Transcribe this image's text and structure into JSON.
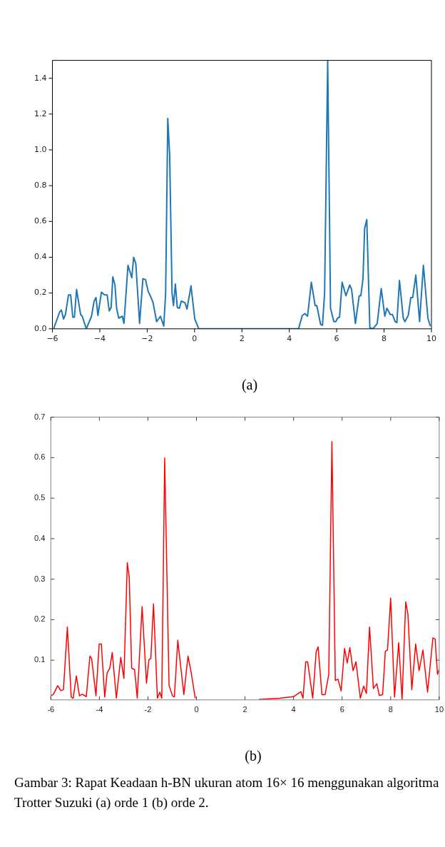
{
  "chart_data": [
    {
      "type": "line",
      "series": [
        {
          "color": "#1f77b4",
          "x": [
            -5.95,
            -5.69,
            -5.62,
            -5.53,
            -5.45,
            -5.32,
            -5.23,
            -5.14,
            -5.07,
            -4.98,
            -4.81,
            -4.74,
            -4.57,
            -4.35,
            -4.24,
            -4.16,
            -4.08,
            -3.93,
            -3.8,
            -3.69,
            -3.6,
            -3.52,
            -3.45,
            -3.36,
            -3.29,
            -3.2,
            -3.05,
            -2.98,
            -2.81,
            -2.65,
            -2.57,
            -2.48,
            -2.32,
            -2.18,
            -2.07,
            -1.96,
            -1.82,
            -1.75,
            -1.6,
            -1.44,
            -1.3,
            -1.22,
            -1.13,
            -1.05,
            -0.95,
            -0.89,
            -0.81,
            -0.73,
            -0.64,
            -0.56,
            -0.4,
            -0.32,
            -0.15,
            0.01,
            0.18,
            4.39,
            4.55,
            4.66,
            4.77,
            4.93,
            5.09,
            5.16,
            5.32,
            5.4,
            5.49,
            5.62,
            5.74,
            5.88,
            5.96,
            6.04,
            6.12,
            6.23,
            6.39,
            6.55,
            6.63,
            6.79,
            6.95,
            7.02,
            7.11,
            7.18,
            7.27,
            7.4,
            7.53,
            7.71,
            7.88,
            8.03,
            8.12,
            8.26,
            8.35,
            8.47,
            8.54,
            8.65,
            8.81,
            8.88,
            9.02,
            9.13,
            9.21,
            9.34,
            9.5,
            9.66,
            9.85,
            9.95
          ],
          "values": [
            0,
            0.095,
            0.105,
            0.055,
            0.08,
            0.19,
            0.19,
            0.065,
            0.065,
            0.22,
            0.08,
            0.07,
            0,
            0.07,
            0.155,
            0.175,
            0.075,
            0.205,
            0.19,
            0.19,
            0.1,
            0.12,
            0.29,
            0.245,
            0.115,
            0.06,
            0.07,
            0.03,
            0.355,
            0.285,
            0.4,
            0.365,
            0.03,
            0.28,
            0.275,
            0.21,
            0.17,
            0.145,
            0.04,
            0.07,
            0.015,
            0.2,
            1.175,
            0.97,
            0.2,
            0.13,
            0.25,
            0.12,
            0.115,
            0.155,
            0.145,
            0.11,
            0.24,
            0.055,
            0,
            0,
            0.075,
            0.085,
            0.07,
            0.26,
            0.13,
            0.13,
            0.025,
            0.02,
            0.2,
            1.5,
            0.115,
            0.04,
            0.04,
            0.06,
            0.065,
            0.26,
            0.185,
            0.245,
            0.22,
            0.03,
            0.185,
            0.185,
            0.28,
            0.56,
            0.61,
            0.005,
            0,
            0.03,
            0.225,
            0.07,
            0.115,
            0.08,
            0.08,
            0.04,
            0.035,
            0.27,
            0.06,
            0.04,
            0.075,
            0.175,
            0.175,
            0.3,
            0.04,
            0.355,
            0.06,
            0.015
          ]
        }
      ],
      "xlim": [
        -6,
        10
      ],
      "xticks": [
        {
          "value": -6,
          "label": "−6"
        },
        {
          "value": -4,
          "label": "−4"
        },
        {
          "value": -2,
          "label": "−2"
        },
        0,
        2,
        4,
        6,
        8,
        10
      ],
      "ylim": [
        0,
        1.5
      ],
      "yticks": [
        {
          "value": 0,
          "label": "0.0"
        },
        0.2,
        0.4,
        0.6,
        0.8,
        {
          "value": 1,
          "label": "1.0"
        },
        1.2,
        1.4
      ],
      "annotations": [
        "(a)"
      ]
    },
    {
      "type": "line",
      "series": [
        {
          "color": "#ff0000",
          "x": [
            -6,
            -5.89,
            -5.72,
            -5.59,
            -5.48,
            -5.32,
            -5.16,
            -5.08,
            -4.95,
            -4.82,
            -4.71,
            -4.54,
            -4.39,
            -4.32,
            -4.14,
            -4.01,
            -3.92,
            -3.78,
            -3.68,
            -3.57,
            -3.47,
            -3.3,
            -3.12,
            -2.99,
            -2.85,
            -2.77,
            -2.67,
            -2.55,
            -2.44,
            -2.24,
            -2.06,
            -1.96,
            -1.88,
            -1.77,
            -1.61,
            -1.51,
            -1.43,
            -1.31,
            -1.13,
            -0.99,
            -0.91,
            -0.77,
            -0.52,
            -0.35,
            -0.24,
            -0.05,
            null,
            2.57,
            3.43,
            4,
            4.3,
            4.39,
            4.5,
            4.58,
            4.79,
            4.93,
            5.01,
            5.17,
            5.3,
            5.45,
            5.58,
            5.72,
            5.83,
            5.96,
            6.1,
            6.21,
            6.32,
            6.45,
            6.57,
            6.75,
            6.89,
            7,
            7.13,
            7.29,
            7.43,
            7.53,
            7.67,
            7.78,
            7.87,
            8,
            8.16,
            8.33,
            8.47,
            8.62,
            8.71,
            8.87,
            9.03,
            9.17,
            9.33,
            9.52,
            9.74,
            9.83,
            9.93,
            10
          ],
          "values": [
            0.012,
            0.016,
            0.037,
            0.025,
            0.027,
            0.182,
            0.009,
            0.006,
            0.061,
            0.012,
            0.016,
            0.01,
            0.11,
            0.104,
            0.012,
            0.14,
            0.14,
            0.009,
            0.069,
            0.08,
            0.119,
            0.006,
            0.107,
            0.055,
            0.341,
            0.304,
            0.08,
            0.077,
            0.006,
            0.232,
            0.043,
            0.101,
            0.104,
            0.239,
            0.006,
            0.021,
            0.006,
            0.599,
            0.038,
            0.012,
            0.009,
            0.149,
            0.015,
            0.11,
            0.077,
            0.006,
            null,
            0.003,
            0.006,
            0.01,
            0.022,
            0.006,
            0.096,
            0.096,
            0.006,
            0.12,
            0.133,
            0.015,
            0.015,
            0.065,
            0.64,
            0.05,
            0.053,
            0.024,
            0.129,
            0.093,
            0.131,
            0.074,
            0.096,
            0.006,
            0.036,
            0.018,
            0.182,
            0.03,
            0.042,
            0.013,
            0.015,
            0.122,
            0.125,
            0.253,
            0.009,
            0.143,
            0.003,
            0.244,
            0.214,
            0.027,
            0.14,
            0.074,
            0.125,
            0.021,
            0.155,
            0.152,
            0.065,
            0.077
          ]
        }
      ],
      "xlim": [
        -6,
        10
      ],
      "xticks": [
        -6,
        -4,
        -2,
        0,
        2,
        4,
        6,
        8,
        10
      ],
      "ylim": [
        0.002,
        0.7
      ],
      "yticks": [
        0.1,
        0.2,
        0.3,
        0.4,
        0.5,
        0.6,
        0.7
      ],
      "annotations": [
        "(b)",
        "Gambar 3: Rapat Keadaan h-BN ukuran atom 16× 16 menggunakan algoritma Trotter Suzuki (a) orde 1 (b) orde 2."
      ]
    }
  ]
}
